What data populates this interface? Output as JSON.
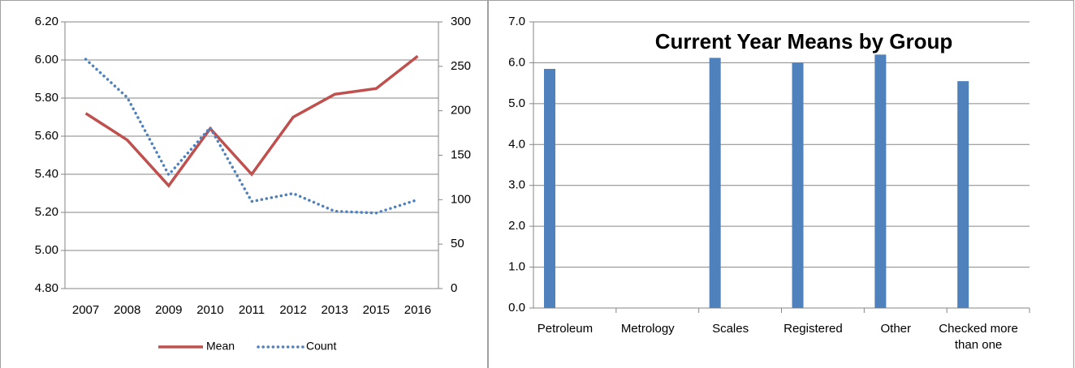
{
  "chart_data": [
    {
      "type": "line",
      "categories": [
        "2007",
        "2008",
        "2009",
        "2010",
        "2011",
        "2012",
        "2013",
        "2015",
        "2016"
      ],
      "series": [
        {
          "name": "Mean",
          "color": "#c0504d",
          "values": [
            5.72,
            5.58,
            5.34,
            5.64,
            5.4,
            5.7,
            5.82,
            5.85,
            6.02
          ]
        },
        {
          "name": "Count",
          "color": "#4f81bd",
          "axis": "y2",
          "dash": true,
          "values": [
            258,
            215,
            128,
            181,
            98,
            107,
            87,
            85,
            100
          ]
        }
      ],
      "ylim": [
        4.8,
        6.2
      ],
      "yticks": [
        {
          "value": 4.8,
          "label": "4.80"
        },
        {
          "value": 5.0,
          "label": "5.00"
        },
        {
          "value": 5.2,
          "label": "5.20"
        },
        {
          "value": 5.4,
          "label": "5.40"
        },
        {
          "value": 5.6,
          "label": "5.60"
        },
        {
          "value": 5.8,
          "label": "5.80"
        },
        {
          "value": 6.0,
          "label": "6.00"
        },
        {
          "value": 6.2,
          "label": "6.20"
        }
      ],
      "y2lim": [
        0,
        300
      ],
      "y2ticks": [
        0,
        50,
        100,
        150,
        200,
        250,
        300
      ],
      "grid": true,
      "legend": "bottom"
    },
    {
      "type": "bar",
      "title": "Current Year Means by Group",
      "categories": [
        "Petroleum",
        "Metrology",
        "Scales",
        "Registered",
        "Other",
        "Checked more than one"
      ],
      "values": [
        5.85,
        null,
        6.12,
        6.0,
        6.2,
        5.55
      ],
      "color": "#4f81bd",
      "ylim": [
        0,
        7
      ],
      "yticks": [
        {
          "value": 0,
          "label": "0.0"
        },
        {
          "value": 1,
          "label": "1.0"
        },
        {
          "value": 2,
          "label": "2.0"
        },
        {
          "value": 3,
          "label": "3.0"
        },
        {
          "value": 4,
          "label": "4.0"
        },
        {
          "value": 5,
          "label": "5.0"
        },
        {
          "value": 6,
          "label": "6.0"
        },
        {
          "value": 7,
          "label": "7.0"
        }
      ],
      "grid": true
    }
  ]
}
